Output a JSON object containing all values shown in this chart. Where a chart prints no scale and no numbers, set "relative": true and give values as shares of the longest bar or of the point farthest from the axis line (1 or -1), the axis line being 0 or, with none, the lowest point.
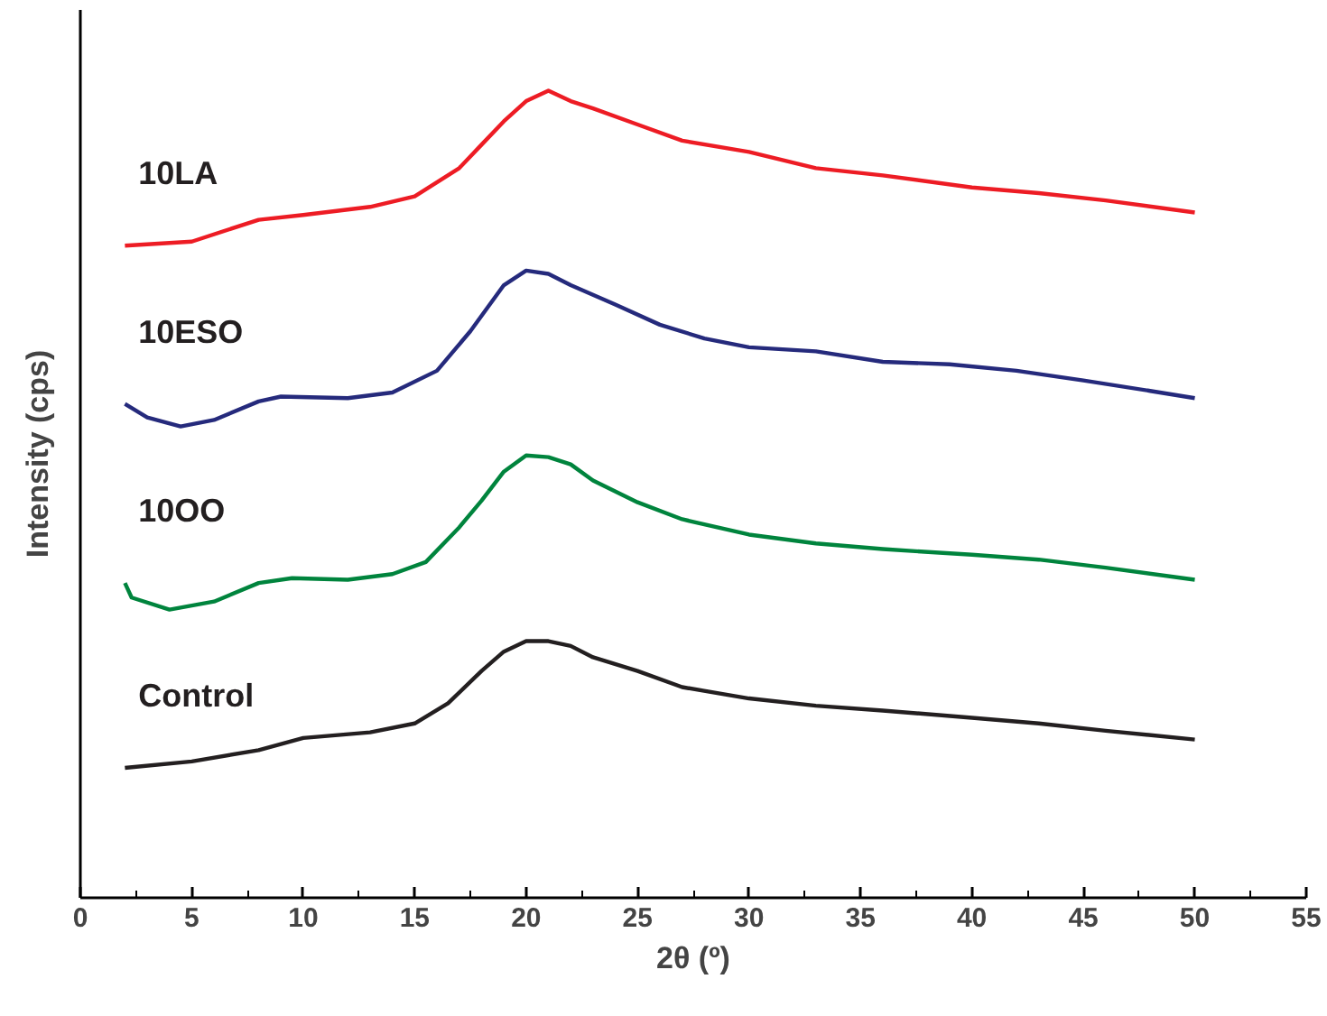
{
  "chart_data": {
    "type": "line",
    "relative": true,
    "xlabel": "2θ (º)",
    "ylabel": "Intensity (cps)",
    "xlim": [
      0,
      55
    ],
    "xticks": [
      0,
      5,
      10,
      15,
      20,
      25,
      30,
      35,
      40,
      45,
      50,
      55
    ],
    "grid": false,
    "legend": false,
    "marker": "none",
    "line_style": "solid",
    "x": [
      2,
      5,
      8,
      10,
      13,
      15,
      17,
      18,
      19,
      20,
      21,
      22,
      23,
      25,
      27,
      30,
      33,
      36,
      40,
      43,
      46,
      50
    ],
    "series": [
      {
        "name": "10LA",
        "color": "#ed1c24",
        "values": [
          0.808,
          0.813,
          0.84,
          0.846,
          0.856,
          0.869,
          0.904,
          0.933,
          0.962,
          0.987,
          1.0,
          0.987,
          0.978,
          0.958,
          0.938,
          0.924,
          0.904,
          0.895,
          0.88,
          0.873,
          0.864,
          0.849
        ]
      },
      {
        "name": "10ESO",
        "color": "#252a7c",
        "x": [
          2,
          3,
          4.5,
          6,
          8,
          9,
          12,
          14,
          16,
          17.5,
          19,
          20,
          21,
          22,
          24,
          26,
          28,
          30,
          33,
          36,
          39,
          42,
          45,
          48,
          50
        ],
        "values": [
          0.612,
          0.595,
          0.584,
          0.592,
          0.615,
          0.621,
          0.619,
          0.626,
          0.653,
          0.702,
          0.759,
          0.777,
          0.773,
          0.759,
          0.735,
          0.71,
          0.693,
          0.682,
          0.677,
          0.664,
          0.661,
          0.653,
          0.641,
          0.628,
          0.619
        ]
      },
      {
        "name": "10OO",
        "color": "#00843d",
        "x": [
          2,
          2.3,
          4,
          6,
          8,
          9.5,
          12,
          14,
          15.5,
          17,
          18,
          19,
          20,
          21,
          22,
          23,
          25,
          27,
          30,
          33,
          36,
          40,
          43,
          46,
          50
        ],
        "values": [
          0.39,
          0.372,
          0.357,
          0.367,
          0.39,
          0.396,
          0.394,
          0.401,
          0.416,
          0.459,
          0.492,
          0.528,
          0.548,
          0.546,
          0.537,
          0.517,
          0.49,
          0.469,
          0.45,
          0.439,
          0.432,
          0.425,
          0.419,
          0.409,
          0.394
        ]
      },
      {
        "name": "Control",
        "color": "#231f20",
        "x": [
          2,
          5,
          8,
          10,
          13,
          15,
          16.5,
          18,
          19,
          20,
          21,
          22,
          23,
          25,
          27,
          30,
          33,
          36,
          40,
          43,
          46,
          50
        ],
        "values": [
          0.161,
          0.169,
          0.183,
          0.198,
          0.205,
          0.216,
          0.241,
          0.281,
          0.305,
          0.318,
          0.318,
          0.312,
          0.298,
          0.281,
          0.261,
          0.247,
          0.238,
          0.232,
          0.223,
          0.216,
          0.207,
          0.196
        ]
      }
    ]
  }
}
